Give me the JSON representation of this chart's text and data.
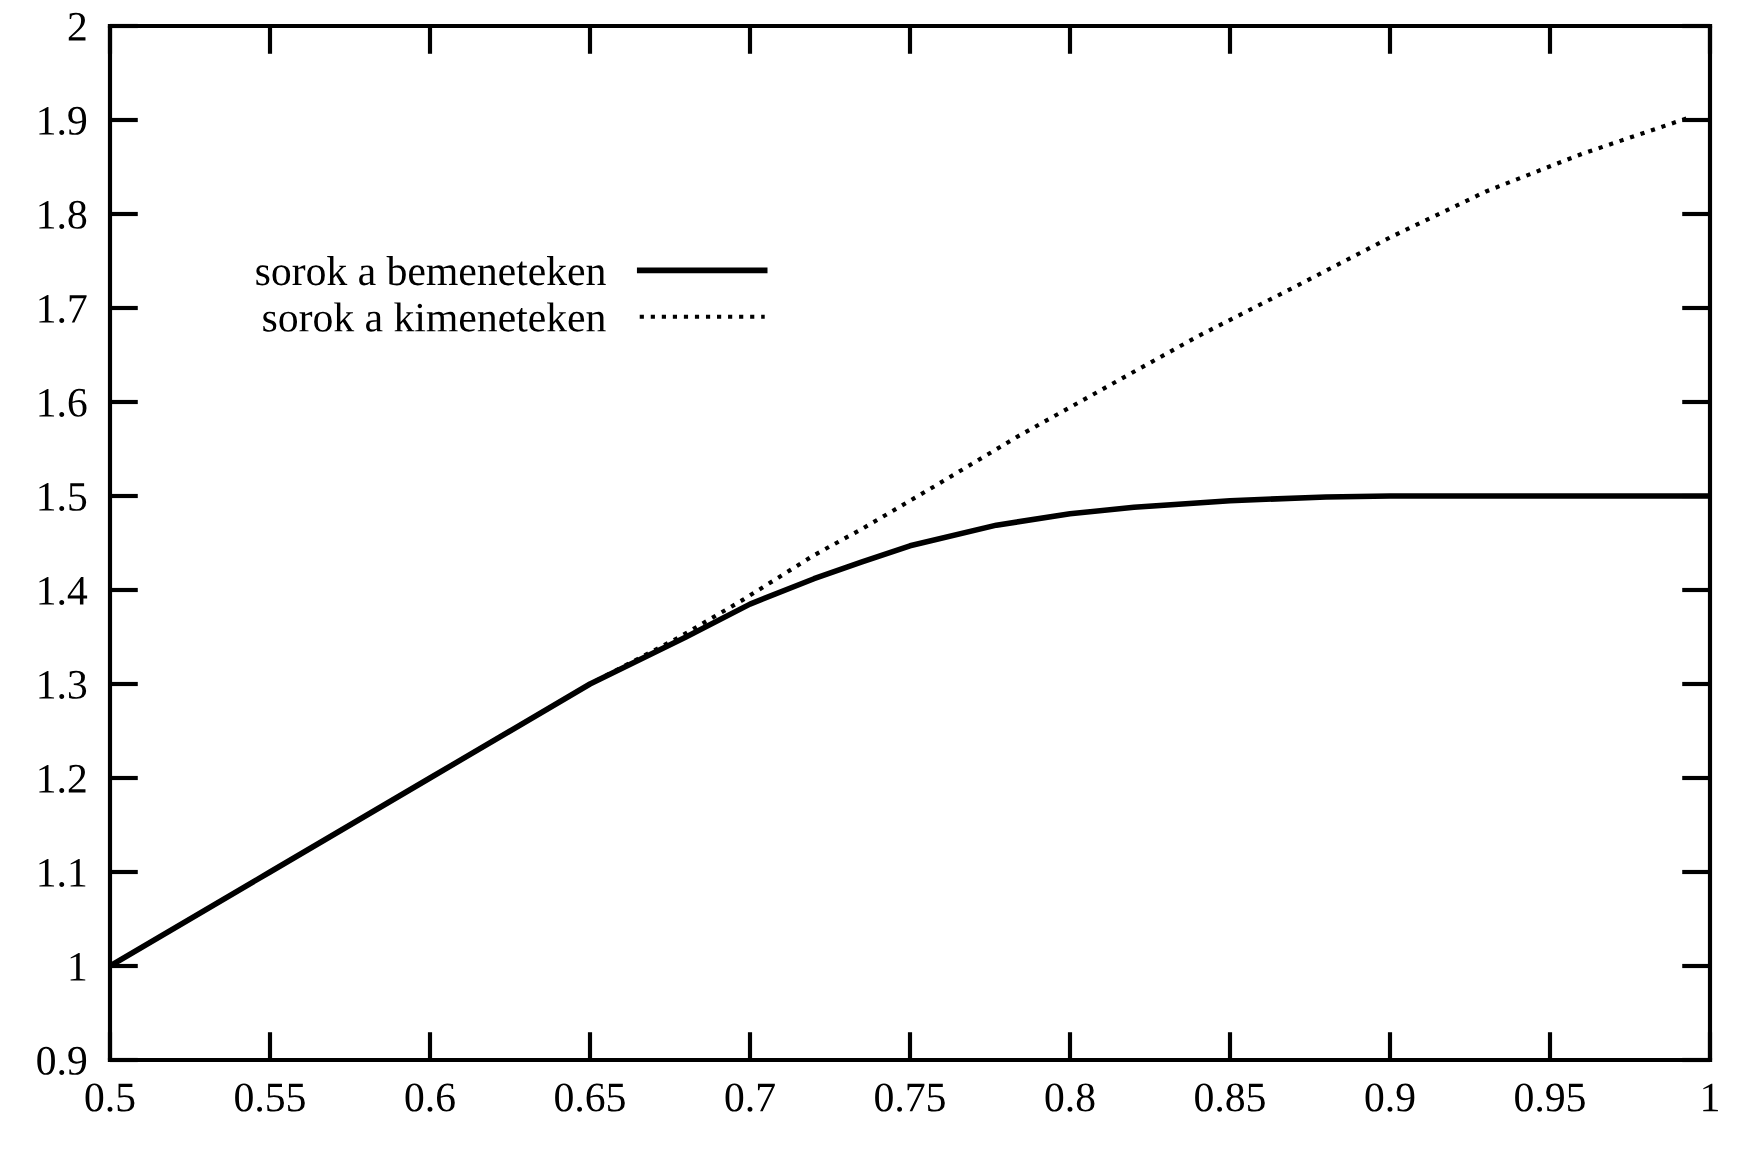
{
  "chart_data": {
    "type": "line",
    "xlim": [
      0.5,
      1
    ],
    "ylim": [
      0.9,
      2
    ],
    "xticks": [
      0.5,
      0.55,
      0.6,
      0.65,
      0.7,
      0.75,
      0.8,
      0.85,
      0.9,
      0.95,
      1
    ],
    "yticks": [
      0.9,
      1,
      1.1,
      1.2,
      1.3,
      1.4,
      1.5,
      1.6,
      1.7,
      1.8,
      1.9,
      2
    ],
    "grid": false,
    "legend": "top left",
    "series": [
      {
        "name": "sorok a bemeneteken",
        "color": "#000000",
        "line_style": "solid",
        "x": [
          0.5,
          0.55,
          0.6,
          0.65,
          0.68,
          0.7,
          0.72,
          0.735,
          0.75,
          0.777,
          0.8,
          0.82,
          0.85,
          0.88,
          0.9,
          1.0
        ],
        "values": [
          1.0,
          1.1,
          1.2,
          1.3,
          1.35,
          1.385,
          1.412,
          1.43,
          1.447,
          1.469,
          1.481,
          1.488,
          1.495,
          1.499,
          1.5,
          1.5
        ]
      },
      {
        "name": "sorok a kimeneteken",
        "color": "#000000",
        "line_style": "dotted",
        "x": [
          0.5,
          0.55,
          0.6,
          0.65,
          0.678,
          0.698,
          0.72,
          0.735,
          0.756,
          0.784,
          0.813,
          0.84,
          0.87,
          0.9,
          0.93,
          0.96,
          0.993
        ],
        "values": [
          1.0,
          1.1,
          1.2,
          1.3,
          1.35,
          1.39,
          1.437,
          1.465,
          1.507,
          1.564,
          1.619,
          1.67,
          1.722,
          1.775,
          1.824,
          1.864,
          1.902
        ]
      }
    ]
  }
}
